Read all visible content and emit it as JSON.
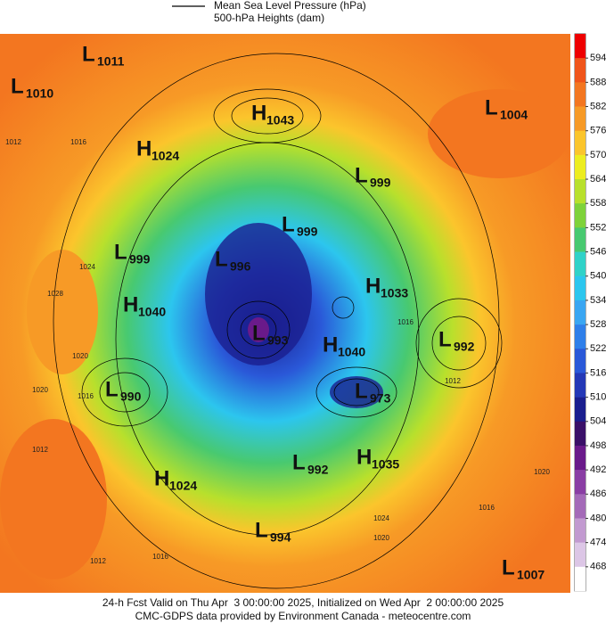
{
  "legend": {
    "line_label": "Mean Sea Level Pressure (hPa)",
    "fill_label": "500-hPa Heights (dam)"
  },
  "colorbar": {
    "ticks": [
      594,
      588,
      582,
      576,
      570,
      564,
      558,
      552,
      546,
      540,
      534,
      528,
      522,
      516,
      510,
      504,
      498,
      492,
      486,
      480,
      474,
      468
    ],
    "colors": [
      "#ee0000",
      "#f0541a",
      "#f37620",
      "#f79a26",
      "#fbc52c",
      "#eded20",
      "#b8e02c",
      "#7ed23a",
      "#48c970",
      "#30d2c8",
      "#2cc6ee",
      "#3aa6f2",
      "#2f7fe9",
      "#2a58d8",
      "#2438b6",
      "#1a1e8e",
      "#3a1068",
      "#6a1a8a",
      "#8a3ea4",
      "#a46ab8",
      "#c29ad0",
      "#dcc6e6",
      "#ffffff"
    ]
  },
  "centers": [
    {
      "type": "L",
      "value": 1011
    },
    {
      "type": "L",
      "value": 1010
    },
    {
      "type": "H",
      "value": 1043
    },
    {
      "type": "L",
      "value": 1004
    },
    {
      "type": "H",
      "value": 1024
    },
    {
      "type": "L",
      "value": 999
    },
    {
      "type": "L",
      "value": 999
    },
    {
      "type": "L",
      "value": 999
    },
    {
      "type": "L",
      "value": 996
    },
    {
      "type": "H",
      "value": 1033
    },
    {
      "type": "H",
      "value": 1040
    },
    {
      "type": "L",
      "value": 993
    },
    {
      "type": "H",
      "value": 1040
    },
    {
      "type": "L",
      "value": 992
    },
    {
      "type": "L",
      "value": 990
    },
    {
      "type": "L",
      "value": 973
    },
    {
      "type": "L",
      "value": 992
    },
    {
      "type": "H",
      "value": 1035
    },
    {
      "type": "H",
      "value": 1024
    },
    {
      "type": "L",
      "value": 994
    },
    {
      "type": "L",
      "value": 1007
    }
  ],
  "isobar_labels": [
    1012,
    1016,
    1024,
    1028,
    1020,
    1016,
    1012,
    1016,
    1012,
    1024,
    1020,
    1016,
    1020,
    1012,
    1016,
    1020
  ],
  "footer": {
    "line1": "24-h Fcst Valid on Thu Apr  3 00:00:00 2025, Initialized on Wed Apr  2 00:00:00 2025",
    "line2": "CMC-GDPS data provided by Environment Canada - meteocentre.com"
  }
}
